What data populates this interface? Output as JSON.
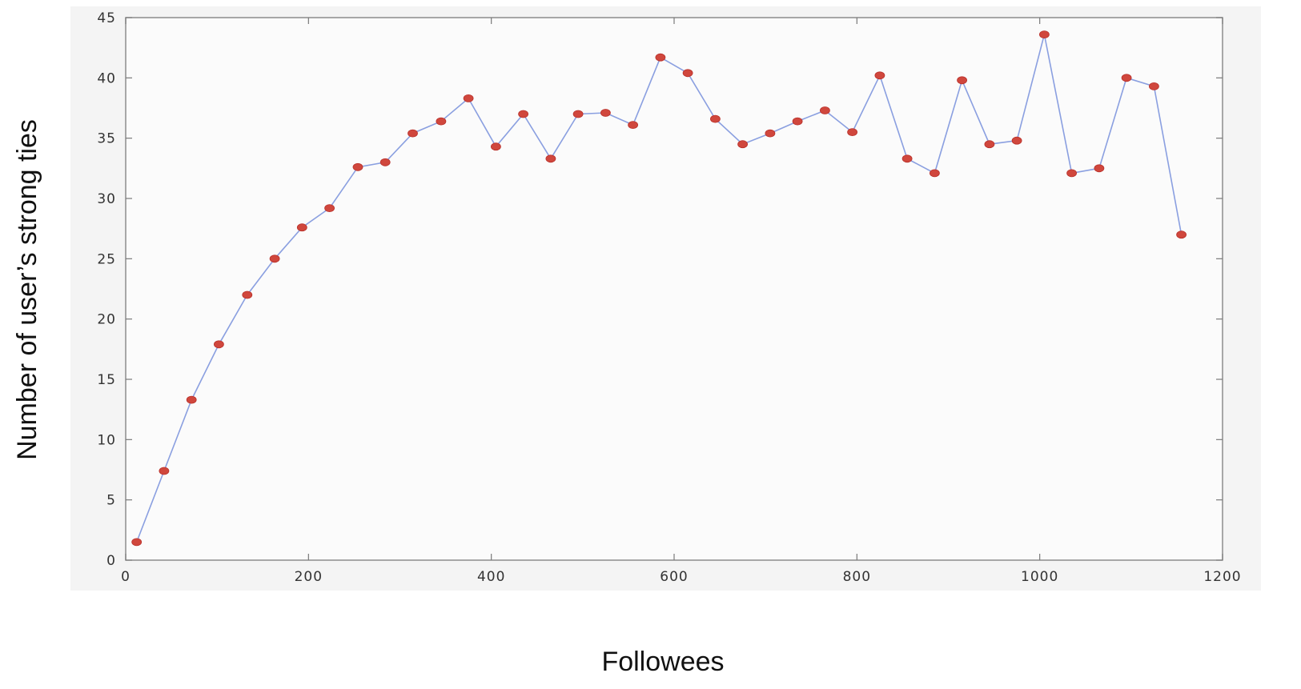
{
  "chart_data": {
    "type": "line",
    "title": "",
    "xlabel": "Followees",
    "ylabel": "Number of user’s strong ties",
    "xlim": [
      0,
      1200
    ],
    "ylim": [
      0,
      45
    ],
    "xticks": [
      0,
      200,
      400,
      600,
      800,
      1000,
      1200
    ],
    "xtick_labels": [
      "0",
      "200",
      "400",
      "600",
      "800",
      "1000",
      "1200"
    ],
    "yticks": [
      0,
      5,
      10,
      15,
      20,
      25,
      30,
      35,
      40,
      45
    ],
    "ytick_labels": [
      "0",
      "5",
      "10",
      "15",
      "20",
      "25",
      "30",
      "35",
      "40",
      "45"
    ],
    "grid": false,
    "legend": false,
    "colors": {
      "line": "#8a9fe0",
      "marker": "#d0473d"
    },
    "series": [
      {
        "x": [
          12,
          42,
          72,
          102,
          133,
          163,
          193,
          223,
          254,
          284,
          314,
          345,
          375,
          405,
          435,
          465,
          495,
          525,
          555,
          585,
          615,
          645,
          675,
          705,
          735,
          765,
          795,
          825,
          855,
          885,
          915,
          945,
          975,
          1005,
          1035,
          1065,
          1095,
          1125,
          1155
        ],
        "values": [
          1.5,
          7.4,
          13.3,
          17.9,
          22.0,
          25.0,
          27.6,
          29.2,
          32.6,
          33.0,
          35.4,
          36.4,
          38.3,
          34.3,
          37.0,
          33.3,
          37.0,
          37.1,
          36.1,
          41.7,
          40.4,
          36.6,
          34.5,
          35.4,
          36.4,
          37.3,
          35.5,
          40.2,
          33.3,
          32.1,
          39.8,
          34.5,
          34.8,
          43.6,
          32.1,
          32.5,
          40.0,
          39.3,
          27.0
        ]
      }
    ]
  }
}
